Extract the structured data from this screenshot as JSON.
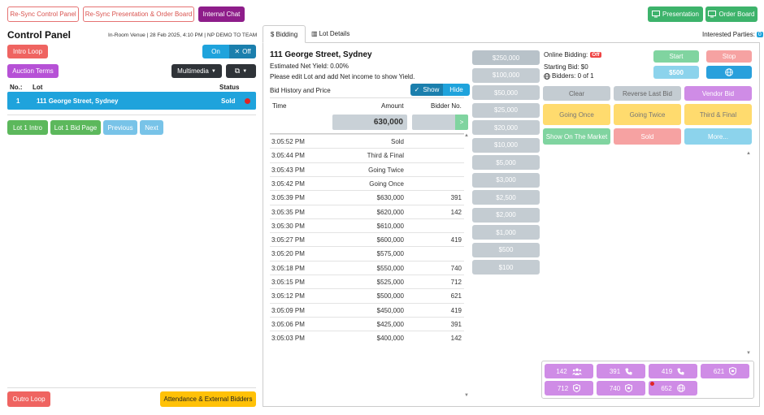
{
  "top_bar": {
    "resync_control": "Re-Sync Control Panel",
    "resync_presentation": "Re-Sync Presentation & Order Board",
    "internal_chat": "Internal Chat",
    "presentation": "Presentation",
    "order_board": "Order Board"
  },
  "control_panel": {
    "title": "Control Panel",
    "venue_info": "In-Room Venue | 28 Feb 2025, 4:10 PM | NP DEMO TO TEAM",
    "intro_loop": "Intro Loop",
    "on_label": "On",
    "off_label": "Off",
    "auction_terms": "Auction Terms",
    "multimedia": "Multimedia",
    "table_headers": {
      "no": "No.:",
      "lot": "Lot",
      "status": "Status"
    },
    "lot_row": {
      "no": "1",
      "lot": "111 George Street, Sydney",
      "status": "Sold"
    },
    "lot_intro": "Lot 1 Intro",
    "lot_bid_page": "Lot 1 Bid Page",
    "previous": "Previous",
    "next": "Next",
    "outro_loop": "Outro Loop",
    "attendance": "Attendance & External Bidders"
  },
  "tabs": {
    "bidding": "$ Bidding",
    "lot_details": "Lot Details"
  },
  "interested_parties": {
    "label": "Interested Parties:",
    "count": "0"
  },
  "lot_summary": {
    "address": "111 George Street, Sydney",
    "net_yield": "Estimated Net Yield: 0.00%",
    "edit_note": "Please edit Lot and add Net income to show Yield.",
    "bid_history_label": "Bid History and Price",
    "show_label": "Show",
    "hide_label": "Hide"
  },
  "history_table": {
    "headers": {
      "time": "Time",
      "amount": "Amount",
      "bidder": "Bidder No."
    },
    "current_price": "630,000",
    "go_label": ">",
    "rows": [
      {
        "time": "3:05:52 PM",
        "amount": "Sold",
        "bidder": ""
      },
      {
        "time": "3:05:44 PM",
        "amount": "Third & Final",
        "bidder": ""
      },
      {
        "time": "3:05:43 PM",
        "amount": "Going Twice",
        "bidder": ""
      },
      {
        "time": "3:05:42 PM",
        "amount": "Going Once",
        "bidder": ""
      },
      {
        "time": "3:05:39 PM",
        "amount": "$630,000",
        "bidder": "391"
      },
      {
        "time": "3:05:35 PM",
        "amount": "$620,000",
        "bidder": "142"
      },
      {
        "time": "3:05:30 PM",
        "amount": "$610,000",
        "bidder": ""
      },
      {
        "time": "3:05:27 PM",
        "amount": "$600,000",
        "bidder": "419"
      },
      {
        "time": "3:05:20 PM",
        "amount": "$575,000",
        "bidder": ""
      },
      {
        "time": "3:05:18 PM",
        "amount": "$550,000",
        "bidder": "740"
      },
      {
        "time": "3:05:15 PM",
        "amount": "$525,000",
        "bidder": "712"
      },
      {
        "time": "3:05:12 PM",
        "amount": "$500,000",
        "bidder": "621"
      },
      {
        "time": "3:05:09 PM",
        "amount": "$450,000",
        "bidder": "419"
      },
      {
        "time": "3:05:06 PM",
        "amount": "$425,000",
        "bidder": "391"
      },
      {
        "time": "3:05:03 PM",
        "amount": "$400,000",
        "bidder": "142"
      }
    ]
  },
  "increments": [
    "$250,000",
    "$100,000",
    "$50,000",
    "$25,000",
    "$20,000",
    "$10,000",
    "$5,000",
    "$3,000",
    "$2,500",
    "$2,000",
    "$1,000",
    "$500",
    "$100"
  ],
  "online": {
    "label": "Online Bidding:",
    "state": "Off",
    "starting_bid": "Starting Bid: $0",
    "bidders": "Bidders: 0 of 1",
    "start": "Start",
    "stop": "Stop",
    "amount": "$500"
  },
  "actions": {
    "clear": "Clear",
    "reverse": "Reverse Last Bid",
    "vendor": "Vendor Bid",
    "going_once": "Going Once",
    "going_twice": "Going Twice",
    "third_final": "Third & Final",
    "show_market": "Show On The Market",
    "sold": "Sold",
    "more": "More..."
  },
  "bidders": [
    {
      "no": "142",
      "icon": "group-icon"
    },
    {
      "no": "391",
      "icon": "phone-icon"
    },
    {
      "no": "419",
      "icon": "phone-icon"
    },
    {
      "no": "621",
      "icon": "badge-icon"
    },
    {
      "no": "712",
      "icon": "badge-icon"
    },
    {
      "no": "740",
      "icon": "badge-icon"
    },
    {
      "no": "652",
      "icon": "globe-icon"
    }
  ]
}
